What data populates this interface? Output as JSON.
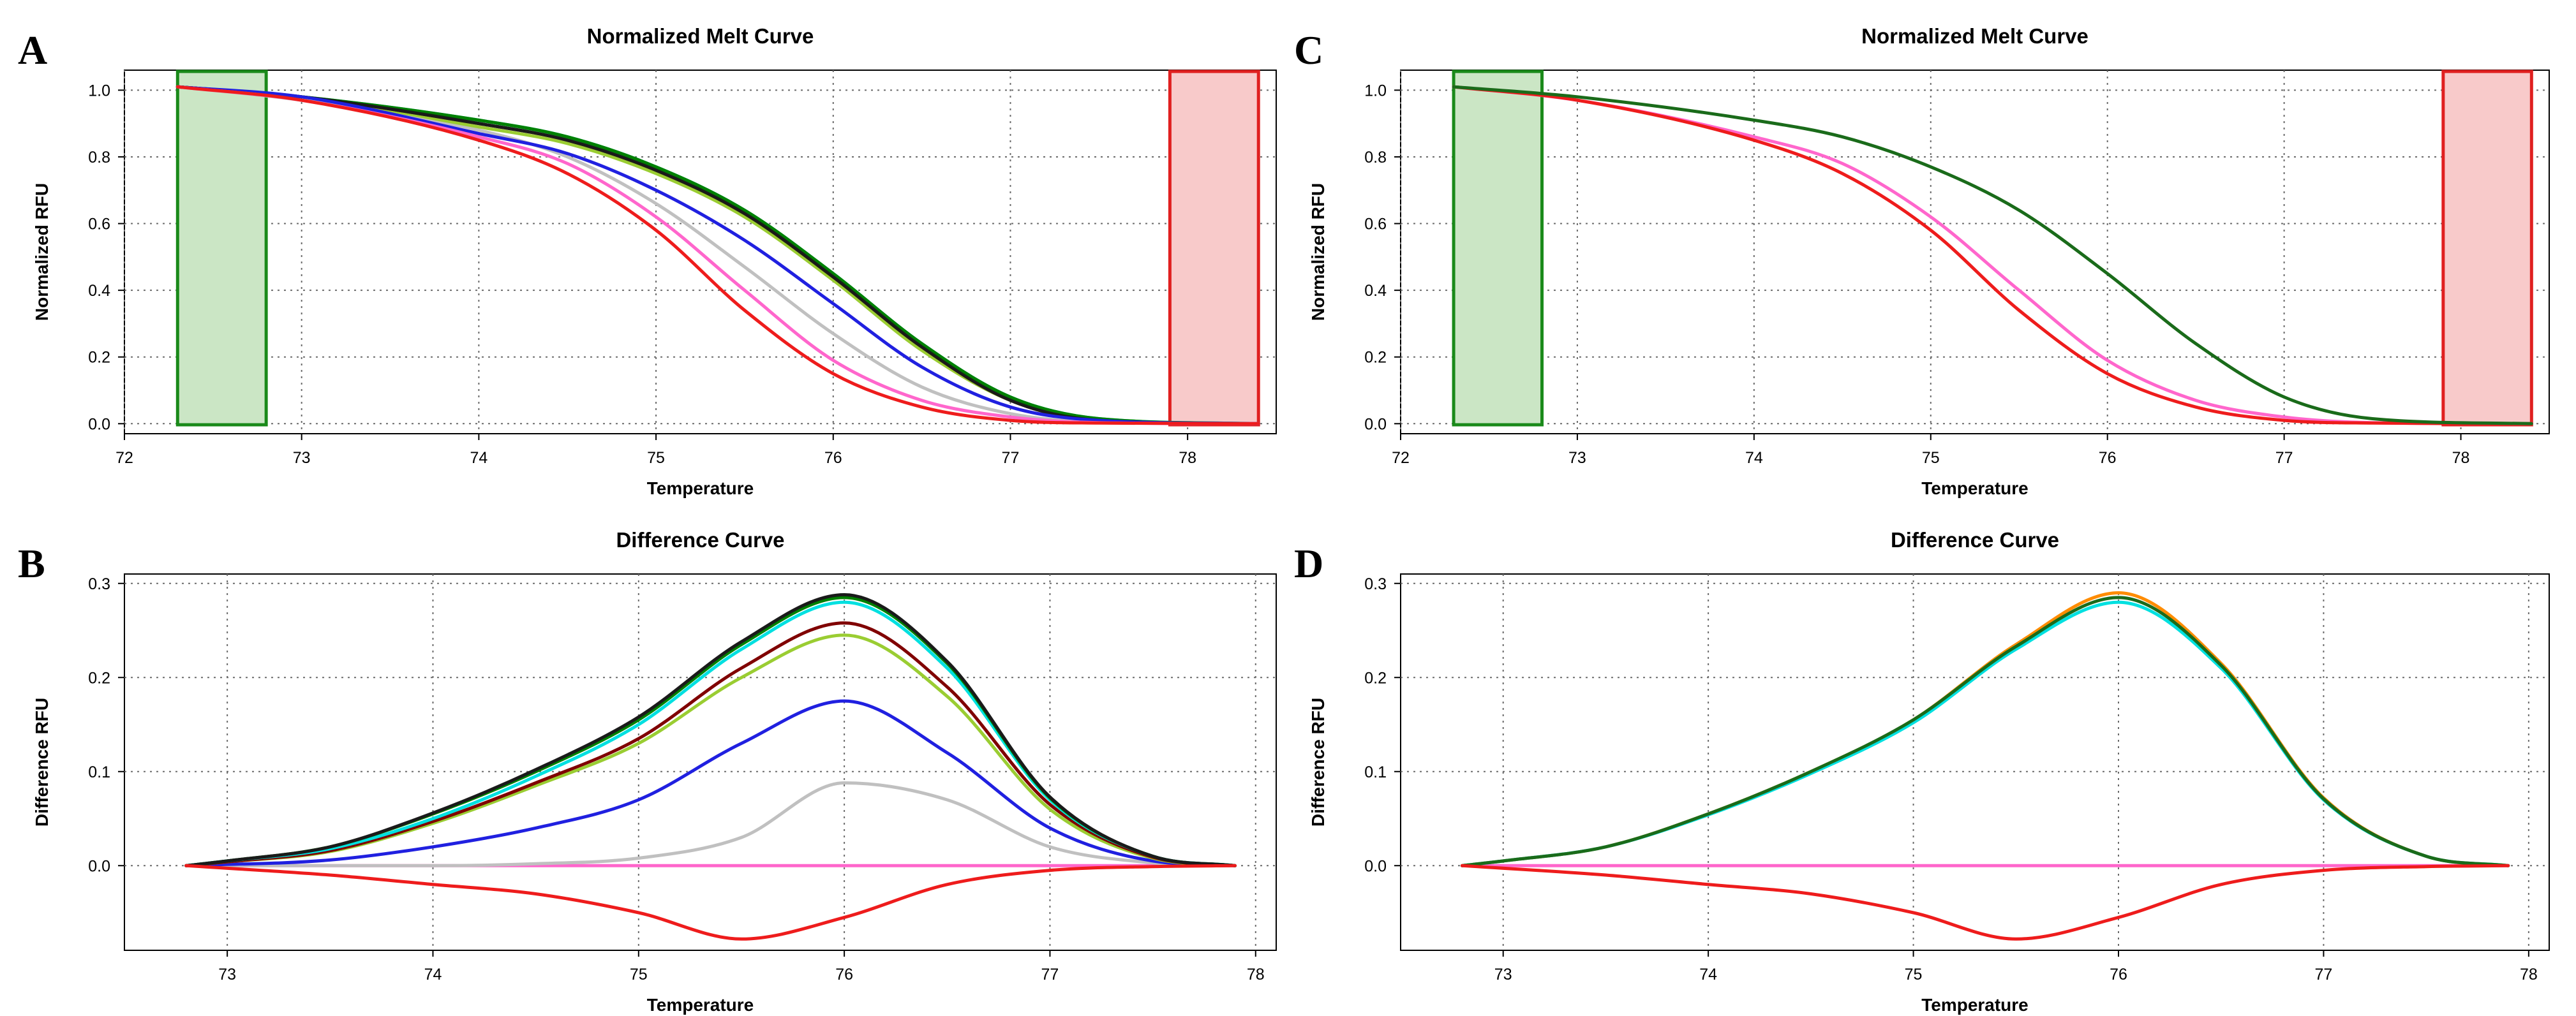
{
  "chart_data": [
    {
      "panel": "A",
      "type": "line",
      "title": "Normalized Melt Curve",
      "xlabel": "Temperature",
      "ylabel": "Normalized RFU",
      "xlim": [
        72,
        78.5
      ],
      "ylim": [
        -0.03,
        1.06
      ],
      "xticks": [
        72,
        73,
        74,
        75,
        76,
        77,
        78
      ],
      "yticks": [
        0.0,
        0.2,
        0.4,
        0.6,
        0.8,
        1.0
      ],
      "ytick_labels": [
        "0.0",
        "0.2",
        "0.4",
        "0.6",
        "0.8",
        "1.0"
      ],
      "grid": true,
      "regions": [
        {
          "name": "pre-melt",
          "x": [
            72.3,
            72.8
          ],
          "fill": "#cbe6c5",
          "stroke": "#1a8a1a"
        },
        {
          "name": "post-melt",
          "x": [
            77.9,
            78.4
          ],
          "fill": "#f8caca",
          "stroke": "#e02020"
        }
      ],
      "series": [
        {
          "name": "gray",
          "color": "#c0c0c0",
          "x": [
            72.3,
            73,
            74,
            74.5,
            75,
            75.5,
            76,
            76.5,
            77,
            77.5,
            78.4
          ],
          "y": [
            1.01,
            0.97,
            0.88,
            0.8,
            0.66,
            0.47,
            0.27,
            0.11,
            0.03,
            0.005,
            0.0
          ]
        },
        {
          "name": "yellow-green",
          "color": "#9acd32",
          "x": [
            72.3,
            73,
            74,
            74.5,
            75,
            75.5,
            76,
            76.5,
            77,
            77.5,
            78.4
          ],
          "y": [
            1.01,
            0.98,
            0.89,
            0.84,
            0.75,
            0.62,
            0.43,
            0.22,
            0.07,
            0.01,
            0.0
          ]
        },
        {
          "name": "maroon",
          "color": "#800000",
          "x": [
            72.3,
            73,
            74,
            74.5,
            75,
            75.5,
            76,
            76.5,
            77,
            77.5,
            78.4
          ],
          "y": [
            1.01,
            0.98,
            0.9,
            0.85,
            0.76,
            0.63,
            0.44,
            0.23,
            0.07,
            0.01,
            0.0
          ]
        },
        {
          "name": "cyan",
          "color": "#00e0e0",
          "x": [
            72.3,
            73,
            74,
            74.5,
            75,
            75.5,
            76,
            76.5,
            77,
            77.5,
            78.4
          ],
          "y": [
            1.01,
            0.98,
            0.91,
            0.86,
            0.77,
            0.64,
            0.45,
            0.24,
            0.08,
            0.015,
            0.0
          ]
        },
        {
          "name": "green",
          "color": "#008000",
          "x": [
            72.3,
            73,
            74,
            74.5,
            75,
            75.5,
            76,
            76.5,
            77,
            77.5,
            78.4
          ],
          "y": [
            1.01,
            0.98,
            0.91,
            0.86,
            0.77,
            0.64,
            0.45,
            0.24,
            0.08,
            0.015,
            0.0
          ]
        },
        {
          "name": "black",
          "color": "#1a1a1a",
          "x": [
            72.3,
            73,
            74,
            74.5,
            75,
            75.5,
            76,
            76.5,
            77,
            77.5,
            78.4
          ],
          "y": [
            1.01,
            0.98,
            0.9,
            0.85,
            0.76,
            0.63,
            0.44,
            0.23,
            0.07,
            0.01,
            0.0
          ]
        },
        {
          "name": "blue",
          "color": "#2020e0",
          "x": [
            72.3,
            73,
            74,
            74.5,
            75,
            75.5,
            76,
            76.5,
            77,
            77.5,
            78.4
          ],
          "y": [
            1.01,
            0.98,
            0.87,
            0.81,
            0.7,
            0.55,
            0.36,
            0.17,
            0.05,
            0.01,
            0.0
          ]
        },
        {
          "name": "pink",
          "color": "#ff66cc",
          "x": [
            72.3,
            73,
            74,
            74.5,
            75,
            75.5,
            76,
            76.5,
            77,
            77.5,
            78.4
          ],
          "y": [
            1.01,
            0.97,
            0.86,
            0.78,
            0.62,
            0.4,
            0.19,
            0.07,
            0.02,
            0.003,
            0.0
          ]
        },
        {
          "name": "red",
          "color": "#ee1c1c",
          "x": [
            72.3,
            73,
            74,
            74.5,
            75,
            75.5,
            76,
            76.5,
            77,
            77.5,
            78.4
          ],
          "y": [
            1.01,
            0.97,
            0.85,
            0.75,
            0.58,
            0.34,
            0.15,
            0.05,
            0.01,
            0.002,
            0.0
          ]
        }
      ]
    },
    {
      "panel": "B",
      "type": "line",
      "title": "Difference Curve",
      "xlabel": "Temperature",
      "ylabel": "Difference RFU",
      "xlim": [
        72.5,
        78.1
      ],
      "ylim": [
        -0.09,
        0.31
      ],
      "xticks": [
        73,
        74,
        75,
        76,
        77,
        78
      ],
      "yticks": [
        0.0,
        0.1,
        0.2,
        0.3
      ],
      "ytick_labels": [
        "0.0",
        "0.1",
        "0.2",
        "0.3"
      ],
      "grid": true,
      "regions": [],
      "series": [
        {
          "name": "pink",
          "color": "#ff66cc",
          "x": [
            72.8,
            77.9
          ],
          "y": [
            0.0,
            0.0
          ]
        },
        {
          "name": "gray",
          "color": "#c0c0c0",
          "x": [
            72.8,
            74,
            74.5,
            75,
            75.5,
            76,
            76.5,
            77,
            77.5,
            77.9
          ],
          "y": [
            0.0,
            0.0,
            0.002,
            0.008,
            0.03,
            0.088,
            0.07,
            0.02,
            0.003,
            0.0
          ]
        },
        {
          "name": "blue",
          "color": "#2020e0",
          "x": [
            72.8,
            73.5,
            74,
            74.5,
            75,
            75.5,
            76,
            76.5,
            77,
            77.5,
            77.9
          ],
          "y": [
            0.0,
            0.006,
            0.02,
            0.04,
            0.07,
            0.13,
            0.175,
            0.12,
            0.04,
            0.005,
            0.0
          ]
        },
        {
          "name": "yellow-green",
          "color": "#9acd32",
          "x": [
            72.8,
            73,
            73.5,
            74,
            74.5,
            75,
            75.5,
            76,
            76.5,
            77,
            77.5,
            77.9
          ],
          "y": [
            0.0,
            0.004,
            0.015,
            0.045,
            0.085,
            0.13,
            0.2,
            0.245,
            0.18,
            0.06,
            0.008,
            0.0
          ]
        },
        {
          "name": "maroon",
          "color": "#800000",
          "x": [
            72.8,
            73,
            73.5,
            74,
            74.5,
            75,
            75.5,
            76,
            76.5,
            77,
            77.5,
            77.9
          ],
          "y": [
            0.0,
            0.004,
            0.016,
            0.047,
            0.088,
            0.135,
            0.21,
            0.258,
            0.19,
            0.065,
            0.009,
            0.0
          ]
        },
        {
          "name": "cyan",
          "color": "#00e0e0",
          "x": [
            72.8,
            73,
            73.5,
            74,
            74.5,
            75,
            75.5,
            76,
            76.5,
            77,
            77.5,
            77.9
          ],
          "y": [
            0.0,
            0.005,
            0.018,
            0.05,
            0.095,
            0.15,
            0.23,
            0.28,
            0.21,
            0.07,
            0.01,
            0.0
          ]
        },
        {
          "name": "green",
          "color": "#008000",
          "x": [
            72.8,
            73,
            73.5,
            74,
            74.5,
            75,
            75.5,
            76,
            76.5,
            77,
            77.5,
            77.9
          ],
          "y": [
            0.0,
            0.005,
            0.02,
            0.055,
            0.1,
            0.155,
            0.235,
            0.285,
            0.215,
            0.072,
            0.01,
            0.0
          ]
        },
        {
          "name": "black",
          "color": "#1a1a1a",
          "x": [
            72.8,
            73,
            73.5,
            74,
            74.5,
            75,
            75.5,
            76,
            76.5,
            77,
            77.5,
            77.9
          ],
          "y": [
            0.0,
            0.005,
            0.02,
            0.056,
            0.102,
            0.158,
            0.238,
            0.288,
            0.217,
            0.073,
            0.01,
            0.0
          ]
        },
        {
          "name": "red",
          "color": "#ee1c1c",
          "x": [
            72.8,
            73.5,
            74,
            74.5,
            75,
            75.5,
            76,
            76.5,
            77,
            77.5,
            77.9
          ],
          "y": [
            0.0,
            -0.01,
            -0.02,
            -0.03,
            -0.05,
            -0.078,
            -0.055,
            -0.02,
            -0.005,
            -0.001,
            0.0
          ]
        }
      ]
    },
    {
      "panel": "C",
      "type": "line",
      "title": "Normalized Melt Curve",
      "xlabel": "Temperature",
      "ylabel": "Normalized RFU",
      "xlim": [
        72,
        78.5
      ],
      "ylim": [
        -0.03,
        1.06
      ],
      "xticks": [
        72,
        73,
        74,
        75,
        76,
        77,
        78
      ],
      "yticks": [
        0.0,
        0.2,
        0.4,
        0.6,
        0.8,
        1.0
      ],
      "ytick_labels": [
        "0.0",
        "0.2",
        "0.4",
        "0.6",
        "0.8",
        "1.0"
      ],
      "grid": true,
      "regions": [
        {
          "name": "pre-melt",
          "x": [
            72.3,
            72.8
          ],
          "fill": "#cbe6c5",
          "stroke": "#1a8a1a"
        },
        {
          "name": "post-melt",
          "x": [
            77.9,
            78.4
          ],
          "fill": "#f8caca",
          "stroke": "#e02020"
        }
      ],
      "series": [
        {
          "name": "pink",
          "color": "#ff66cc",
          "x": [
            72.3,
            73,
            74,
            74.5,
            75,
            75.5,
            76,
            76.5,
            77,
            77.5,
            78.4
          ],
          "y": [
            1.01,
            0.97,
            0.86,
            0.78,
            0.62,
            0.4,
            0.19,
            0.07,
            0.02,
            0.003,
            0.0
          ]
        },
        {
          "name": "red",
          "color": "#ee1c1c",
          "x": [
            72.3,
            73,
            74,
            74.5,
            75,
            75.5,
            76,
            76.5,
            77,
            77.5,
            78.4
          ],
          "y": [
            1.01,
            0.97,
            0.85,
            0.75,
            0.58,
            0.34,
            0.15,
            0.05,
            0.01,
            0.002,
            0.0
          ]
        },
        {
          "name": "green",
          "color": "#1a6b1a",
          "x": [
            72.3,
            73,
            74,
            74.5,
            75,
            75.5,
            76,
            76.5,
            77,
            77.5,
            78.4
          ],
          "y": [
            1.01,
            0.98,
            0.91,
            0.86,
            0.77,
            0.64,
            0.45,
            0.24,
            0.08,
            0.015,
            0.0
          ]
        }
      ]
    },
    {
      "panel": "D",
      "type": "line",
      "title": "Difference Curve",
      "xlabel": "Temperature",
      "ylabel": "Difference RFU",
      "xlim": [
        72.5,
        78.1
      ],
      "ylim": [
        -0.09,
        0.31
      ],
      "xticks": [
        73,
        74,
        75,
        76,
        77,
        78
      ],
      "yticks": [
        0.0,
        0.1,
        0.2,
        0.3
      ],
      "ytick_labels": [
        "0.0",
        "0.1",
        "0.2",
        "0.3"
      ],
      "grid": true,
      "regions": [],
      "series": [
        {
          "name": "pink",
          "color": "#ff66cc",
          "x": [
            72.8,
            77.9
          ],
          "y": [
            0.0,
            0.0
          ]
        },
        {
          "name": "orange",
          "color": "#ff8c00",
          "x": [
            72.8,
            73,
            73.5,
            74,
            74.5,
            75,
            75.5,
            76,
            76.5,
            77,
            77.5,
            77.9
          ],
          "y": [
            0.0,
            0.005,
            0.02,
            0.055,
            0.1,
            0.155,
            0.235,
            0.29,
            0.215,
            0.072,
            0.01,
            0.0
          ]
        },
        {
          "name": "cyan",
          "color": "#00e0e0",
          "x": [
            72.8,
            73,
            73.5,
            74,
            74.5,
            75,
            75.5,
            76,
            76.5,
            77,
            77.5,
            77.9
          ],
          "y": [
            0.0,
            0.005,
            0.02,
            0.054,
            0.098,
            0.152,
            0.23,
            0.28,
            0.21,
            0.07,
            0.01,
            0.0
          ]
        },
        {
          "name": "green",
          "color": "#1a6b1a",
          "x": [
            72.8,
            73,
            73.5,
            74,
            74.5,
            75,
            75.5,
            76,
            76.5,
            77,
            77.5,
            77.9
          ],
          "y": [
            0.0,
            0.005,
            0.02,
            0.055,
            0.1,
            0.155,
            0.233,
            0.285,
            0.213,
            0.071,
            0.01,
            0.0
          ]
        },
        {
          "name": "red",
          "color": "#ee1c1c",
          "x": [
            72.8,
            73.5,
            74,
            74.5,
            75,
            75.5,
            76,
            76.5,
            77,
            77.5,
            77.9
          ],
          "y": [
            0.0,
            -0.01,
            -0.02,
            -0.03,
            -0.05,
            -0.078,
            -0.055,
            -0.02,
            -0.005,
            -0.001,
            0.0
          ]
        }
      ]
    }
  ]
}
